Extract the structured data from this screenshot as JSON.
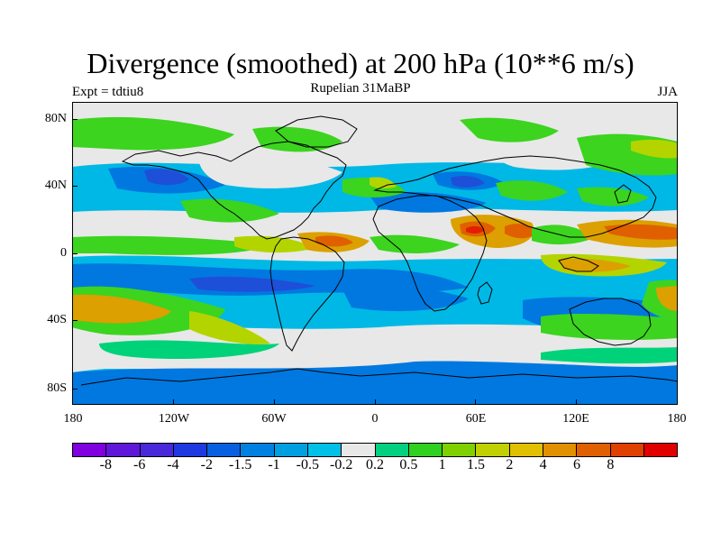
{
  "title": "Divergence (smoothed) at 200 hPa (10**6 m/s)",
  "subtitle": "Rupelian  31MaBP",
  "experiment_label": "Expt = tdtiu8",
  "season_label": "JJA",
  "map": {
    "projection": "cylindrical equidistant",
    "lon_range": [
      -180,
      180
    ],
    "lat_range": [
      -90,
      90
    ],
    "y_axis_labels": [
      "80N",
      "40N",
      "0",
      "40S",
      "80S"
    ],
    "x_axis_labels": [
      "180",
      "120W",
      "60W",
      "0",
      "60E",
      "120E",
      "180"
    ],
    "colors": {
      "background": "#e8e8e8",
      "strong_conv": "#1e4fd8",
      "conv": "#0078e0",
      "weak_conv": "#00b8e6",
      "weak_div": "#00d27a",
      "div": "#3cd41e",
      "mod_div": "#b4d400",
      "strong_div": "#dca000",
      "max_div": "#e06000",
      "extreme_div": "#e02000",
      "coastline": "#000000"
    }
  },
  "colorbar": {
    "colors": [
      "#8000e0",
      "#6018d8",
      "#4828d8",
      "#2038e0",
      "#0860e0",
      "#0080e0",
      "#00a0e0",
      "#00c0e8",
      "#e8e8e8",
      "#00d080",
      "#30d020",
      "#80d000",
      "#c0d000",
      "#e0c000",
      "#e09000",
      "#e06000",
      "#e04000",
      "#e00000"
    ],
    "labels": [
      "-8",
      "-6",
      "-4",
      "-2",
      "-1.5",
      "-1",
      "-0.5",
      "-0.2",
      "0.2",
      "0.5",
      "1",
      "1.5",
      "2",
      "4",
      "6",
      "8"
    ]
  }
}
